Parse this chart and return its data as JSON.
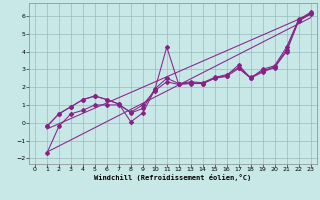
{
  "xlabel": "Windchill (Refroidissement éolien,°C)",
  "bg_color": "#c8e8e8",
  "line_color": "#882288",
  "grid_color": "#99bbbb",
  "xlim": [
    -0.5,
    23.5
  ],
  "ylim": [
    -2.3,
    6.7
  ],
  "xticks": [
    0,
    1,
    2,
    3,
    4,
    5,
    6,
    7,
    8,
    9,
    10,
    11,
    12,
    13,
    14,
    15,
    16,
    17,
    18,
    19,
    20,
    21,
    22,
    23
  ],
  "yticks": [
    -2,
    -1,
    0,
    1,
    2,
    3,
    4,
    5,
    6
  ],
  "line1_x": [
    1,
    2,
    3,
    4,
    5,
    6,
    7,
    8,
    9,
    10,
    11,
    12,
    13,
    14,
    15,
    16,
    17,
    18,
    19,
    20,
    21,
    22,
    23
  ],
  "line1_y": [
    -0.2,
    0.5,
    0.9,
    1.3,
    1.5,
    1.3,
    1.05,
    0.05,
    0.55,
    1.85,
    4.25,
    2.15,
    2.25,
    2.2,
    2.5,
    2.65,
    3.25,
    2.5,
    3.0,
    3.2,
    4.25,
    5.8,
    6.2
  ],
  "line2_x": [
    1,
    2,
    3,
    4,
    5,
    6,
    7,
    8,
    9,
    10,
    11,
    12,
    13,
    14,
    15,
    16,
    17,
    18,
    19,
    20,
    21,
    22,
    23
  ],
  "line2_y": [
    -1.7,
    -0.2,
    0.5,
    0.7,
    1.0,
    1.0,
    1.0,
    0.6,
    1.0,
    1.8,
    2.3,
    2.15,
    2.2,
    2.2,
    2.5,
    2.6,
    3.05,
    2.5,
    2.85,
    3.1,
    4.0,
    5.7,
    6.1
  ],
  "line3_x": [
    1,
    2,
    3,
    4,
    5,
    6,
    7,
    8,
    9,
    10,
    11,
    12,
    13,
    14,
    15,
    16,
    17,
    18,
    19,
    20,
    21,
    22,
    23
  ],
  "line3_y": [
    -0.2,
    0.5,
    0.9,
    1.3,
    1.5,
    1.3,
    1.05,
    0.55,
    0.8,
    1.9,
    2.5,
    2.2,
    2.3,
    2.25,
    2.55,
    2.7,
    3.1,
    2.55,
    2.9,
    3.15,
    4.1,
    5.75,
    6.15
  ],
  "trend1_x": [
    1,
    23
  ],
  "trend1_y": [
    -0.35,
    6.1
  ],
  "trend2_x": [
    1,
    23
  ],
  "trend2_y": [
    -1.65,
    5.9
  ]
}
